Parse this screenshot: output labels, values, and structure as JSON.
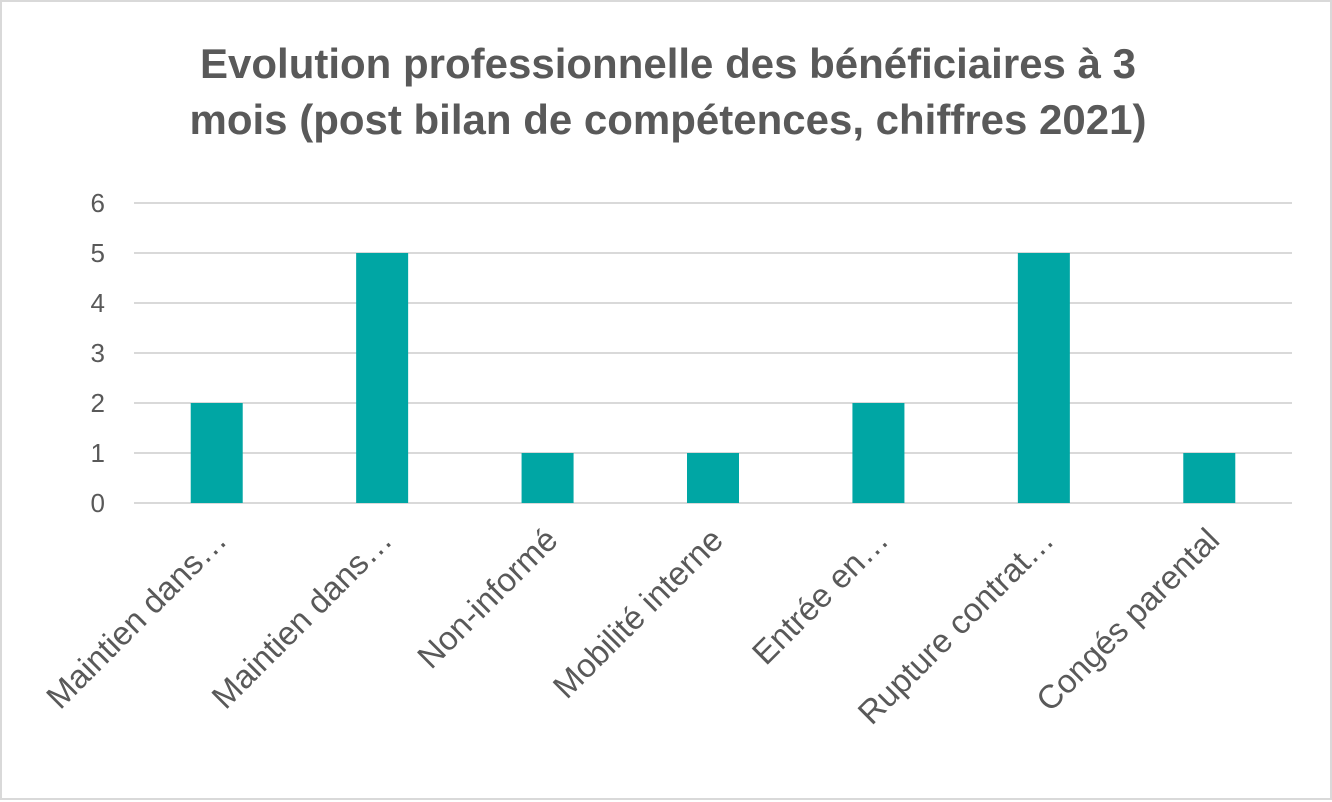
{
  "chart_data": {
    "type": "bar",
    "title_lines": [
      "Evolution professionnelle des bénéficiaires à 3",
      "mois (post bilan de compétences, chiffres 2021)"
    ],
    "categories": [
      "Maintien dans…",
      "Maintien  dans…",
      "Non-informé",
      "Mobilité interne",
      "Entrée en…",
      "Rupture contrat…",
      "Congés parental"
    ],
    "values": [
      2,
      5,
      1,
      1,
      2,
      5,
      1
    ],
    "xlabel": "",
    "ylabel": "",
    "ylim": [
      0,
      6
    ],
    "yticks": [
      0,
      1,
      2,
      3,
      4,
      5,
      6
    ],
    "grid": true,
    "legend": "none",
    "bar_color": "#00a6a4",
    "grid_color": "#d9d9d9",
    "text_color": "#595959"
  }
}
